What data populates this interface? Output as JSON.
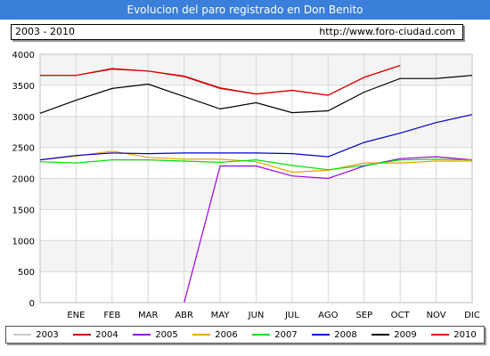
{
  "header": {
    "title": "Evolucion del paro registrado en Don Benito",
    "range": "2003 - 2010",
    "site": "http://www.foro-ciudad.com"
  },
  "chart_data": {
    "type": "line",
    "categories": [
      "ENE",
      "FEB",
      "MAR",
      "ABR",
      "MAY",
      "JUN",
      "JUL",
      "AGO",
      "SEP",
      "OCT",
      "NOV",
      "DIC"
    ],
    "ylim": [
      0,
      4000
    ],
    "yticks": [
      "0",
      "500",
      "1000",
      "1500",
      "2000",
      "2500",
      "3000",
      "3500",
      "4000"
    ],
    "grid": true,
    "legend_position": "bottom",
    "series": [
      {
        "name": "2003",
        "color": "#c8c8c8",
        "values": [
          null,
          null,
          null,
          null,
          null,
          null,
          null,
          null,
          null,
          null,
          null,
          null
        ]
      },
      {
        "name": "2004",
        "color": "#c00000",
        "values": [
          3660,
          3760,
          3730,
          3650,
          3460,
          3360,
          3420,
          3340,
          3630,
          3820,
          null,
          null
        ]
      },
      {
        "name": "2005",
        "color": "#a000e0",
        "values": [
          null,
          null,
          null,
          0,
          2200,
          2200,
          2040,
          2000,
          2200,
          2320,
          2350,
          2300
        ]
      },
      {
        "name": "2006",
        "color": "#f0a000",
        "values": [
          2360,
          2440,
          2340,
          2310,
          2310,
          2270,
          2100,
          2130,
          2250,
          2250,
          2280,
          2280
        ]
      },
      {
        "name": "2007",
        "color": "#00e000",
        "values": [
          2250,
          2300,
          2300,
          2280,
          2260,
          2300,
          2210,
          2140,
          2210,
          2300,
          2310,
          2300
        ]
      },
      {
        "name": "2008",
        "color": "#0000d0",
        "values": [
          2370,
          2410,
          2400,
          2410,
          2410,
          2410,
          2400,
          2350,
          2580,
          2730,
          2900,
          3030
        ]
      },
      {
        "name": "2009",
        "color": "#000000",
        "values": [
          3260,
          3450,
          3520,
          3320,
          3120,
          3220,
          3060,
          3090,
          3390,
          3610,
          3610,
          3660
        ]
      },
      {
        "name": "2010",
        "color": "#dd0000",
        "values": [
          3660,
          3770,
          3730,
          3640,
          3450,
          3360,
          3420,
          3340,
          3630,
          3820,
          null,
          null
        ]
      }
    ],
    "series_start": {
      "2005": null,
      "2006": 2300,
      "2007": 2270,
      "2008": 2300,
      "2009": 3050,
      "2010": 3660,
      "2004": 3660
    }
  }
}
